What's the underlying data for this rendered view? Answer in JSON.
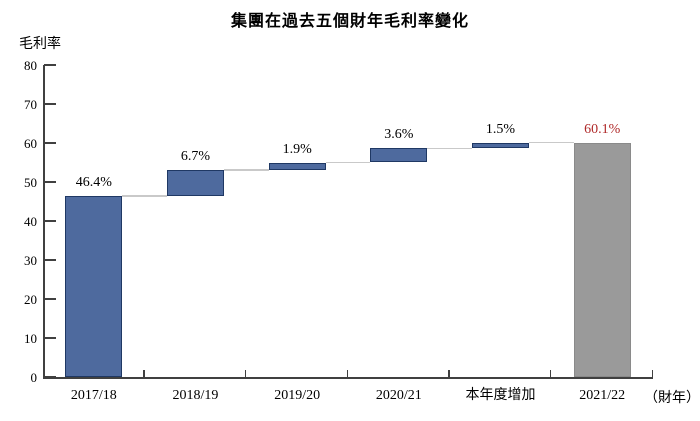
{
  "chart_data": {
    "type": "bar",
    "subtype": "waterfall",
    "title": "集團在過去五個財年毛利率變化",
    "ylabel": "毛利率",
    "xlabel": "",
    "x_unit_label": "（財年）",
    "categories": [
      "2017/18",
      "2018/19",
      "2019/20",
      "2020/21",
      "本年度增加",
      "2021/22"
    ],
    "bars": [
      {
        "category": "2017/18",
        "value": 46.4,
        "start": 0,
        "end": 46.4,
        "label": "46.4%",
        "color": "blue"
      },
      {
        "category": "2018/19",
        "value": 6.7,
        "start": 46.4,
        "end": 53.1,
        "label": "6.7%",
        "color": "blue"
      },
      {
        "category": "2019/20",
        "value": 1.9,
        "start": 53.1,
        "end": 55.0,
        "label": "1.9%",
        "color": "blue"
      },
      {
        "category": "2020/21",
        "value": 3.6,
        "start": 55.0,
        "end": 58.6,
        "label": "3.6%",
        "color": "blue"
      },
      {
        "category": "本年度增加",
        "value": 1.5,
        "start": 58.6,
        "end": 60.1,
        "label": "1.5%",
        "color": "blue"
      },
      {
        "category": "2021/22",
        "value": 60.1,
        "start": 0,
        "end": 60.1,
        "label": "60.1%",
        "color": "gray",
        "label_color": "#b02a2a"
      }
    ],
    "y_ticks": [
      0,
      10,
      20,
      30,
      40,
      50,
      60,
      70,
      80
    ],
    "ylim": [
      0,
      80
    ],
    "grid": false,
    "legend": false,
    "tick_direction": "inside",
    "colors": {
      "blue": "#4e6a9e",
      "blue_border": "#1f3864",
      "gray": "#9a9a9a",
      "gray_border": "#8a8a8a",
      "final_label": "#b02a2a",
      "connector": "#c9c9c9",
      "axis": "#404040",
      "text": "#000000"
    }
  }
}
